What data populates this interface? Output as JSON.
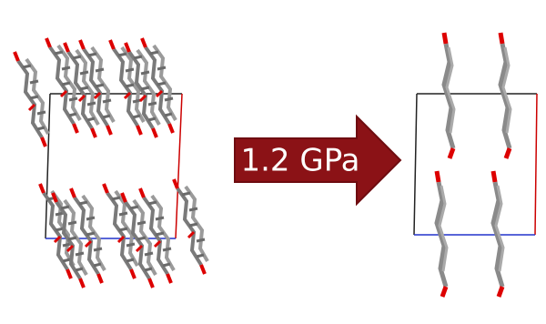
{
  "arrow": {
    "label": "1.2 GPa"
  }
}
